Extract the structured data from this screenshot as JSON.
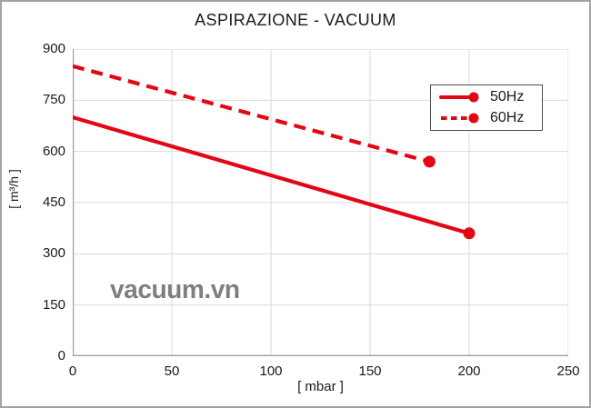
{
  "title": "ASPIRAZIONE - VACUUM",
  "watermark": "vacuum.vn",
  "colors": {
    "line_red": "#e30613",
    "grid": "#d9d9d9",
    "axis": "#9e9e9e",
    "text": "#1a1a1a",
    "watermark_gray": "#7f7f7f",
    "legend_border": "#4d4d4d",
    "outer_border": "#a3a3a3"
  },
  "chart_data": {
    "type": "line",
    "title": "ASPIRAZIONE - VACUUM",
    "xlabel": "[ mbar ]",
    "ylabel": "[ m³/h ]",
    "xlim": [
      0,
      250
    ],
    "ylim": [
      0,
      900
    ],
    "x_ticks": [
      0,
      50,
      100,
      150,
      200,
      250
    ],
    "y_ticks": [
      0,
      150,
      300,
      450,
      600,
      750,
      900
    ],
    "grid": true,
    "legend_position": "top-right",
    "series": [
      {
        "name": "50Hz",
        "style": "solid",
        "color": "#e30613",
        "points": [
          [
            0,
            700
          ],
          [
            200,
            360
          ]
        ],
        "end_marker": true
      },
      {
        "name": "60Hz",
        "style": "dashed",
        "color": "#e30613",
        "points": [
          [
            0,
            850
          ],
          [
            180,
            570
          ]
        ],
        "end_marker": true
      }
    ]
  }
}
